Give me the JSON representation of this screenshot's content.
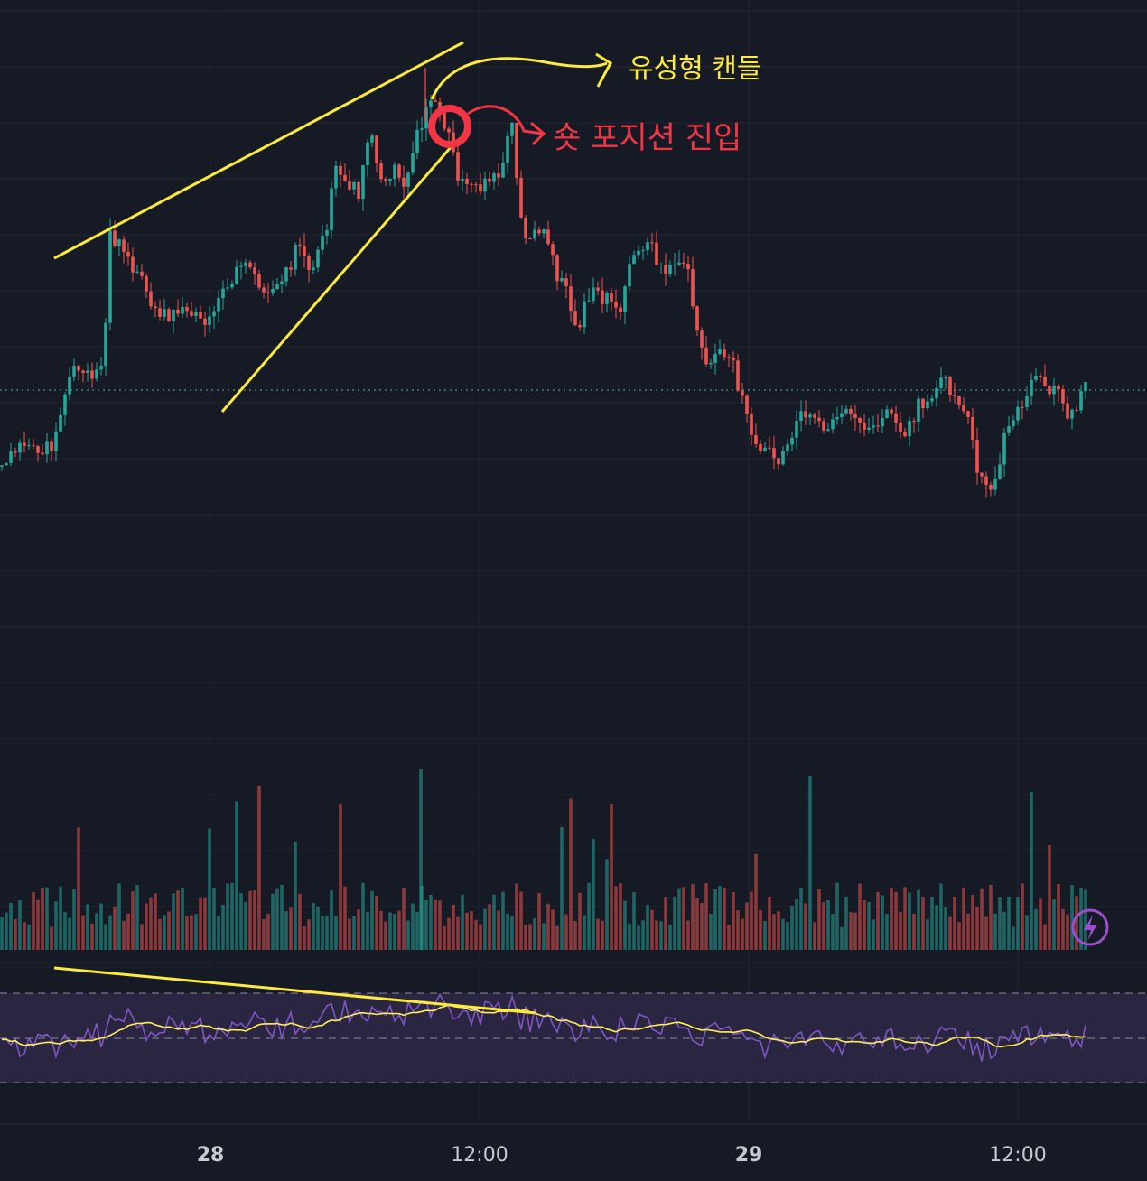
{
  "colors": {
    "background": "#161a25",
    "grid": "#232733",
    "up": "#26a69a",
    "down": "#ef5350",
    "rsi_line": "#7e57c2",
    "rsi_ma": "#ffee58",
    "rsi_band": "#2a2540",
    "annotation_yellow": "#ffeb3b",
    "annotation_red": "#f23645",
    "price_line": "#4db6ac",
    "axis_text": "#c7c9d1",
    "lightning": "#9c4dcc"
  },
  "annotations": {
    "shooting_star": "유성형 캔들",
    "short_entry": "숏 포지션 진입"
  },
  "icons": {
    "lightning": "lightning-icon"
  },
  "chart_data": {
    "type": "candlestick",
    "x_ticks": [
      "28",
      "12:00",
      "29",
      "12:00"
    ],
    "rsi_levels": [
      70,
      50,
      30
    ],
    "note": "RSI oscillator and volume bars shown below price panel; price axis labels not visible"
  }
}
